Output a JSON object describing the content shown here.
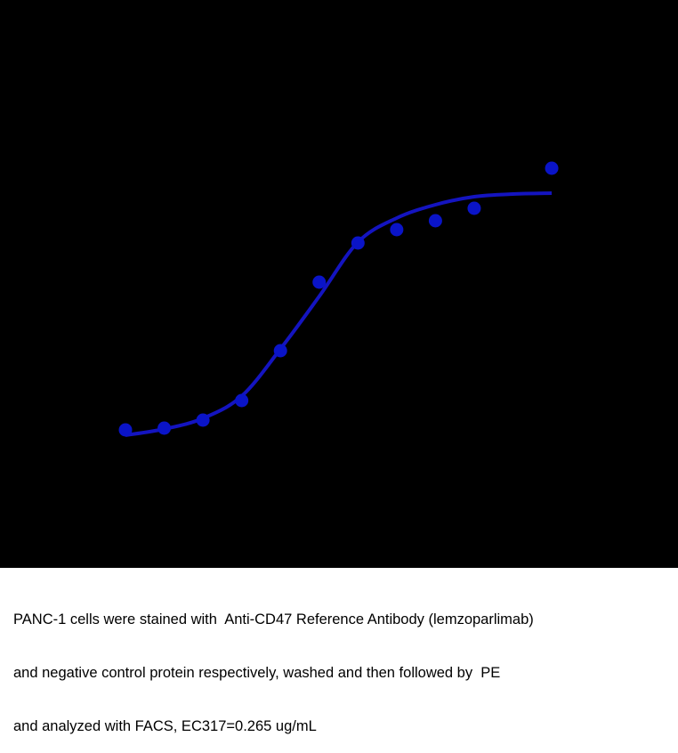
{
  "chart_data": {
    "type": "scatter",
    "series": [
      {
        "color": "#0a14c8",
        "x": [
          1,
          2,
          3,
          4,
          5,
          6,
          7,
          8,
          9,
          10,
          12
        ],
        "values": [
          23.4,
          23.8,
          25.6,
          30,
          41.2,
          56.6,
          65.4,
          68.4,
          70.4,
          73.2,
          82.2
        ]
      },
      {
        "color": "#1414c0",
        "x": [
          1,
          2,
          3,
          4,
          5,
          6,
          7,
          8,
          9,
          10,
          11,
          12
        ],
        "values": [
          22.2,
          23.6,
          26,
          31,
          41.6,
          53.4,
          65.6,
          71,
          74,
          75.8,
          76.4,
          76.6
        ]
      }
    ],
    "xlim": [
      0,
      13
    ],
    "ylim": [
      0,
      100
    ]
  },
  "caption": [
    "PANC-1 cells were stained with  Anti-CD47 Reference Antibody (lemzoparlimab)",
    "and negative control protein respectively, washed and then followed by  PE",
    "and analyzed with FACS, EC317=0.265 ug/mL"
  ]
}
